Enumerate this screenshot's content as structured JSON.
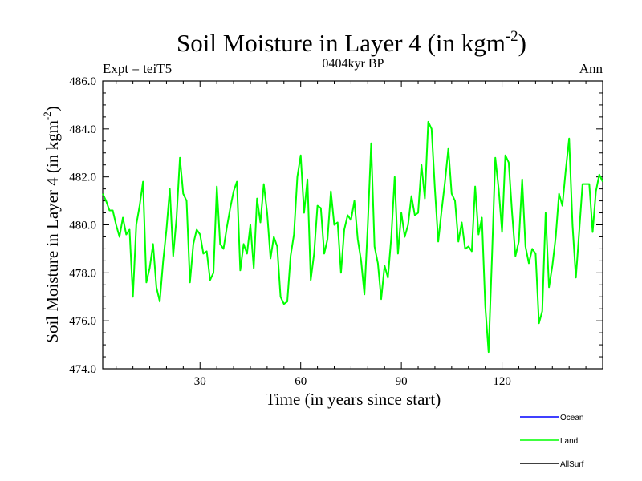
{
  "chart_data": {
    "type": "line",
    "title": "Soil Moisture in Layer 4 (in kgm",
    "title_exp": "-2",
    "title_end": ")",
    "subtitle": "0404kyr BP",
    "left_label": "Expt = teiT5",
    "right_label": "Ann",
    "xlabel": "Time (in years since start)",
    "ylabel": "Soil Moisture in Layer 4 (in kgm",
    "ylabel_exp": "-2",
    "ylabel_end": ")",
    "xlim": [
      1,
      150
    ],
    "ylim": [
      474.0,
      486.0
    ],
    "xticks": [
      30,
      60,
      90,
      120
    ],
    "xtick_labels": [
      "30",
      "60",
      "90",
      "120"
    ],
    "yticks": [
      474.0,
      476.0,
      478.0,
      480.0,
      482.0,
      484.0,
      486.0
    ],
    "ytick_labels": [
      "474.0",
      "476.0",
      "478.0",
      "480.0",
      "482.0",
      "484.0",
      "486.0"
    ],
    "legend": [
      {
        "name": "Ocean",
        "color": "#0000ff"
      },
      {
        "name": "Land",
        "color": "#00ff00"
      },
      {
        "name": "AllSurf",
        "color": "#000000"
      }
    ],
    "series": [
      {
        "name": "Land",
        "color": "#00ff00",
        "x": [
          1,
          2,
          3,
          4,
          5,
          6,
          7,
          8,
          9,
          10,
          11,
          12,
          13,
          14,
          15,
          16,
          17,
          18,
          19,
          20,
          21,
          22,
          23,
          24,
          25,
          26,
          27,
          28,
          29,
          30,
          31,
          32,
          33,
          34,
          35,
          36,
          37,
          38,
          39,
          40,
          41,
          42,
          43,
          44,
          45,
          46,
          47,
          48,
          49,
          50,
          51,
          52,
          53,
          54,
          55,
          56,
          57,
          58,
          59,
          60,
          61,
          62,
          63,
          64,
          65,
          66,
          67,
          68,
          69,
          70,
          71,
          72,
          73,
          74,
          75,
          76,
          77,
          78,
          79,
          80,
          81,
          82,
          83,
          84,
          85,
          86,
          87,
          88,
          89,
          90,
          91,
          92,
          93,
          94,
          95,
          96,
          97,
          98,
          99,
          100,
          101,
          102,
          103,
          104,
          105,
          106,
          107,
          108,
          109,
          110,
          111,
          112,
          113,
          114,
          115,
          116,
          117,
          118,
          119,
          120,
          121,
          122,
          123,
          124,
          125,
          126,
          127,
          128,
          129,
          130,
          131,
          132,
          133,
          134,
          135,
          136,
          137,
          138,
          139,
          140,
          141,
          142,
          143,
          144,
          145,
          146,
          147,
          148,
          149,
          150
        ],
        "values": [
          481.3,
          481.0,
          480.6,
          480.6,
          480.0,
          479.5,
          480.3,
          479.6,
          479.8,
          477.0,
          480.0,
          480.8,
          481.8,
          477.6,
          478.2,
          479.2,
          477.4,
          476.8,
          478.5,
          479.8,
          481.5,
          478.7,
          480.3,
          482.8,
          481.3,
          481.0,
          477.6,
          479.2,
          479.8,
          479.6,
          478.8,
          478.9,
          477.7,
          478.0,
          481.6,
          479.2,
          479.0,
          479.9,
          480.7,
          481.4,
          481.8,
          478.1,
          479.2,
          478.8,
          480.0,
          478.2,
          481.1,
          480.1,
          481.7,
          480.5,
          478.6,
          479.5,
          479.1,
          477.0,
          476.7,
          476.8,
          478.7,
          479.6,
          482.0,
          482.9,
          480.5,
          481.9,
          477.7,
          478.8,
          480.8,
          480.7,
          478.8,
          479.4,
          481.4,
          480.0,
          480.1,
          478.0,
          479.8,
          480.4,
          480.2,
          481.0,
          479.4,
          478.5,
          477.1,
          480.0,
          483.4,
          479.1,
          478.4,
          476.9,
          478.3,
          477.8,
          479.5,
          482.0,
          478.8,
          480.5,
          479.5,
          480.0,
          481.2,
          480.4,
          480.5,
          482.5,
          481.1,
          484.3,
          484.0,
          481.5,
          479.3,
          480.6,
          481.8,
          483.2,
          481.3,
          481.0,
          479.3,
          480.1,
          479.0,
          479.1,
          478.9,
          481.6,
          479.6,
          480.3,
          476.6,
          474.7,
          478.6,
          482.8,
          481.5,
          479.7,
          482.9,
          482.6,
          480.5,
          478.7,
          479.3,
          481.9,
          479.1,
          478.4,
          479.0,
          478.8,
          475.9,
          476.4,
          480.5,
          477.4,
          478.3,
          479.5,
          481.3,
          480.8,
          482.3,
          483.6,
          480.0,
          477.8,
          479.7,
          481.7,
          481.7,
          481.7,
          479.7,
          481.4,
          482.1,
          481.8
        ]
      }
    ]
  }
}
